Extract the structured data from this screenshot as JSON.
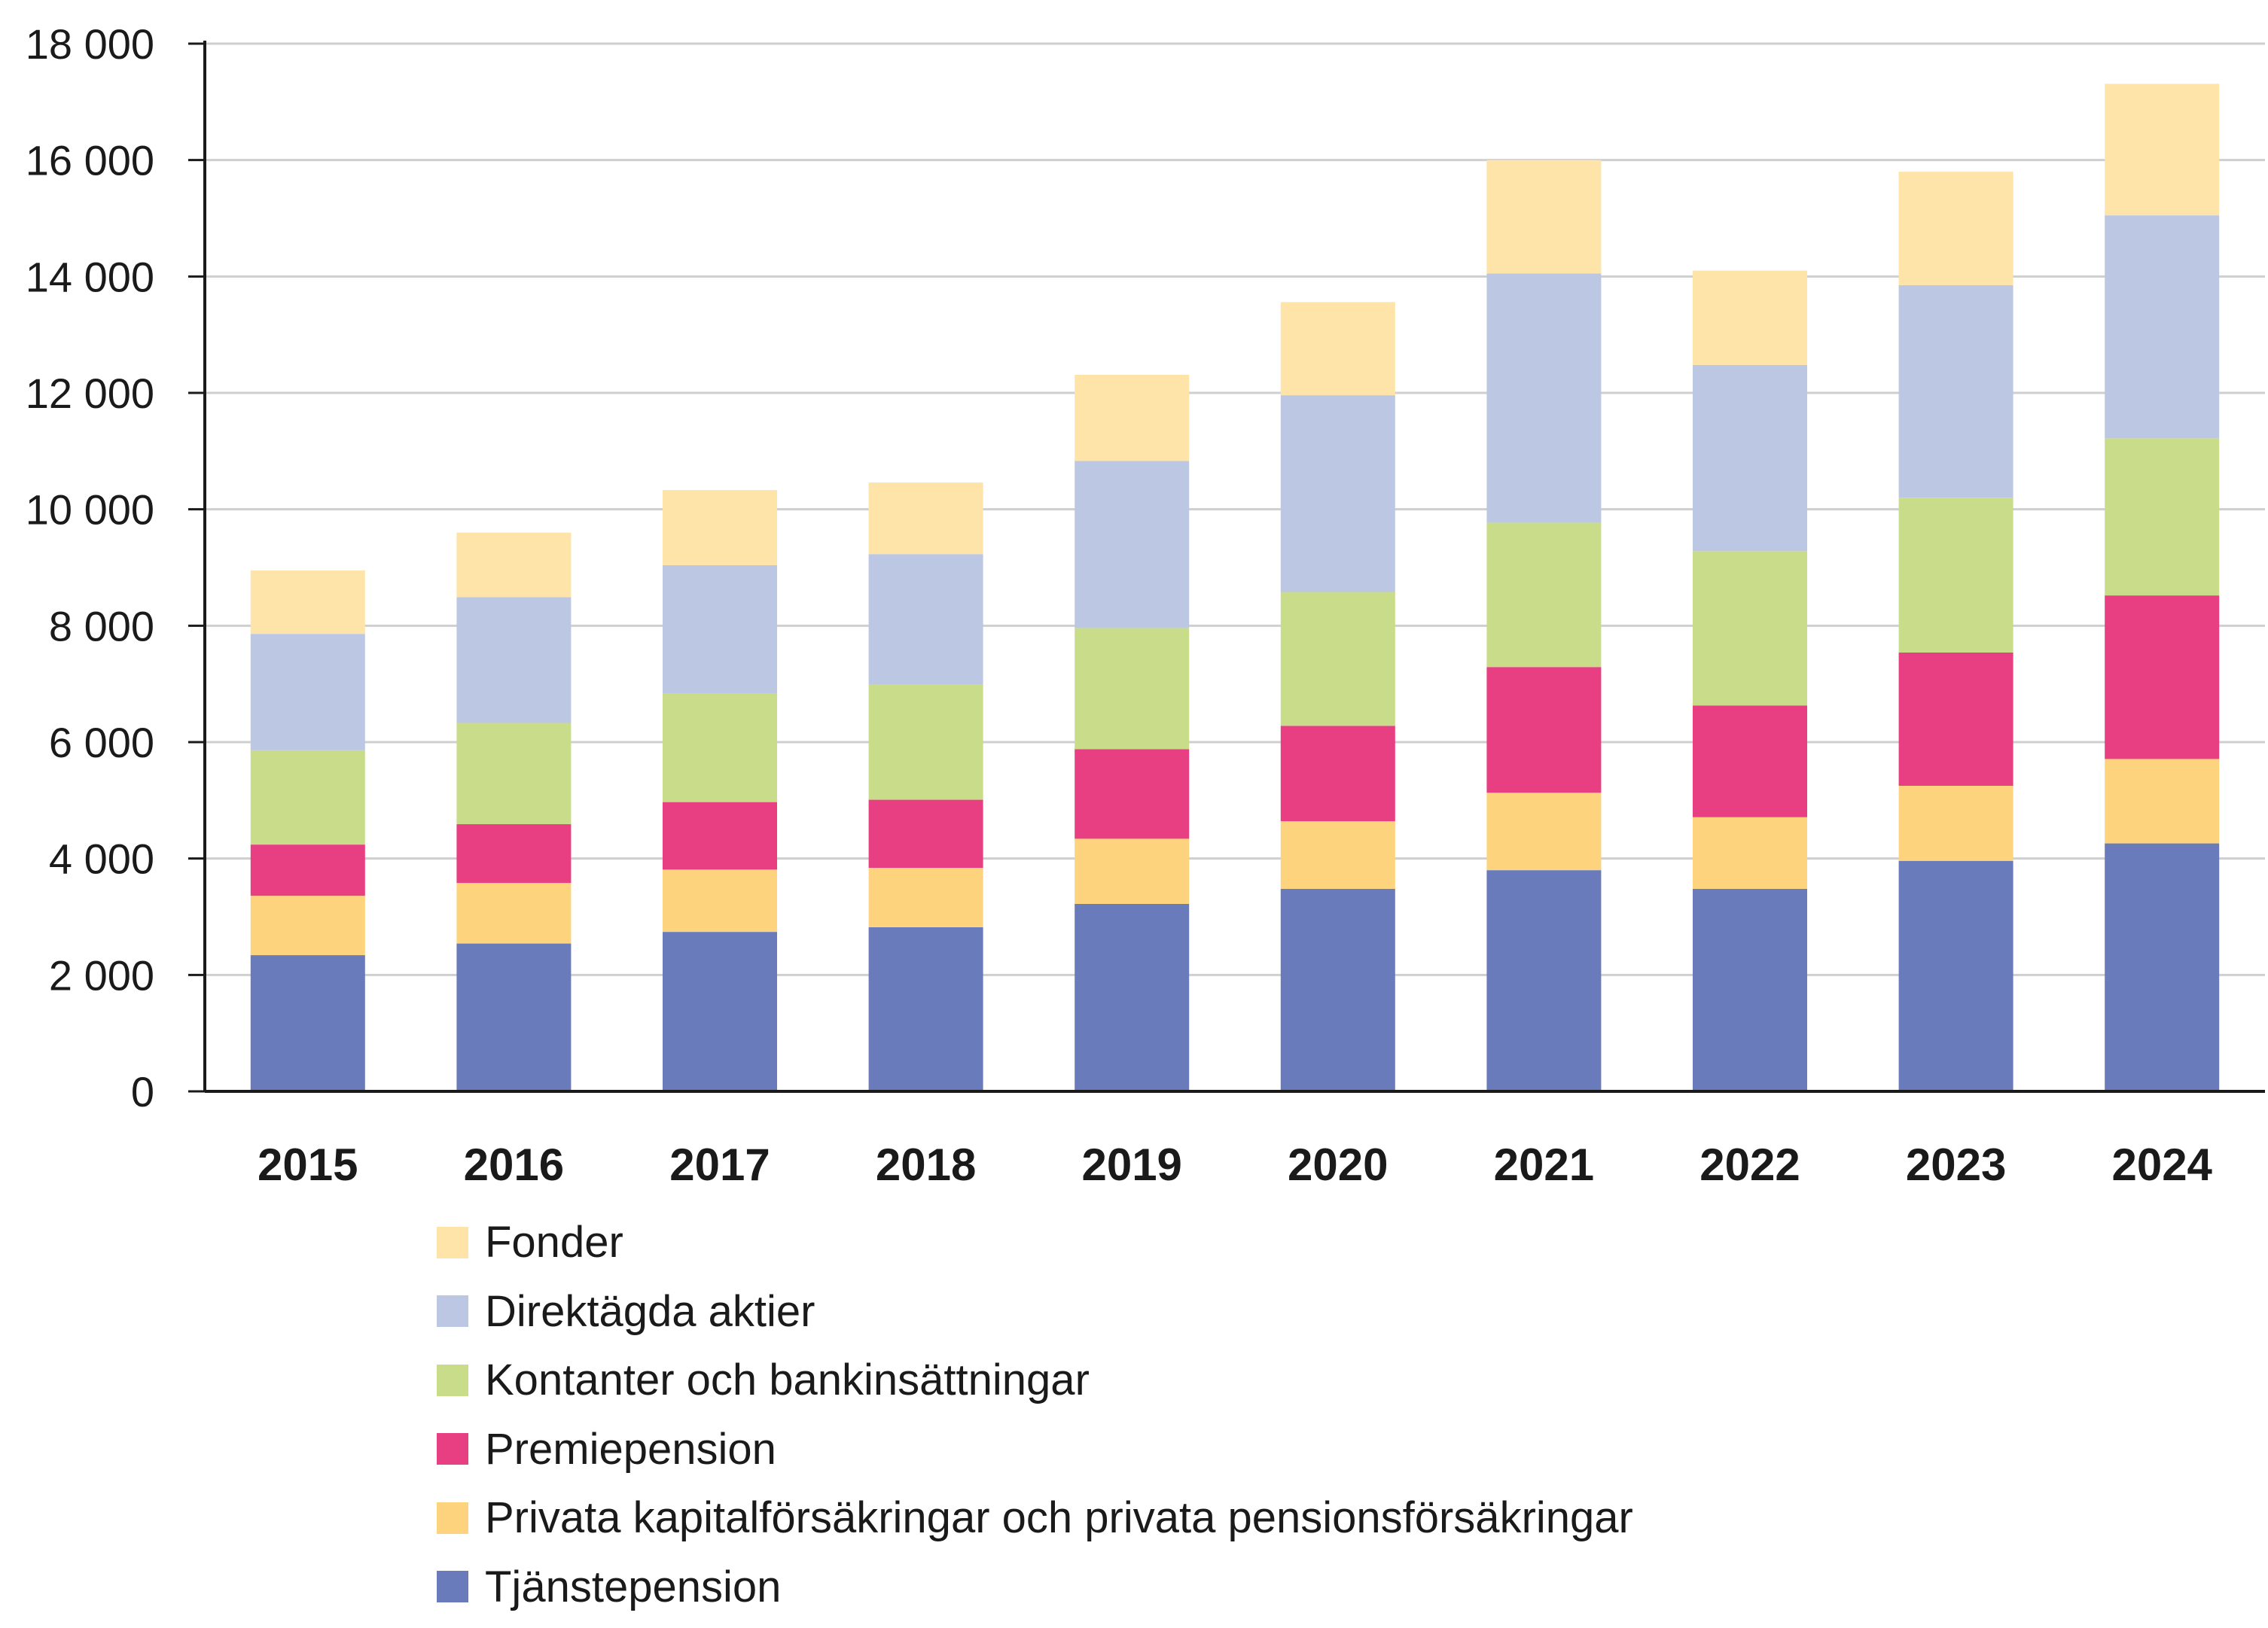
{
  "chart_data": {
    "type": "bar",
    "stacked": true,
    "categories": [
      "2015",
      "2016",
      "2017",
      "2018",
      "2019",
      "2020",
      "2021",
      "2022",
      "2023",
      "2024"
    ],
    "yticks": [
      "0",
      "2 000",
      "4 000",
      "6 000",
      "8 000",
      "10 000",
      "12 000",
      "14 000",
      "16 000",
      "18 000"
    ],
    "ylim": [
      0,
      18000
    ],
    "grid": true,
    "legend_position": "bottom",
    "series": [
      {
        "name": "Tjänstepension",
        "color": "#6a7bbc",
        "values": [
          2340,
          2540,
          2740,
          2820,
          3220,
          3480,
          3800,
          3480,
          3960,
          4260
        ]
      },
      {
        "name": "Privata kapitalförsäkringar och privata pensionsförsäkringar",
        "color": "#fdd47d",
        "values": [
          1020,
          1040,
          1070,
          1020,
          1120,
          1160,
          1330,
          1230,
          1290,
          1450
        ]
      },
      {
        "name": "Premiepension",
        "color": "#e83e82",
        "values": [
          880,
          1010,
          1160,
          1170,
          1540,
          1640,
          2160,
          1920,
          2290,
          2810
        ]
      },
      {
        "name": "Kontanter och bankinsättningar",
        "color": "#c8dc8a",
        "values": [
          1620,
          1740,
          1860,
          1980,
          2080,
          2300,
          2480,
          2650,
          2660,
          2700
        ]
      },
      {
        "name": "Direktägda aktier",
        "color": "#bcc7e3",
        "values": [
          2000,
          2160,
          2210,
          2240,
          2870,
          3380,
          4280,
          3200,
          3650,
          3830
        ]
      },
      {
        "name": "Fonder",
        "color": "#fee4a8",
        "values": [
          1090,
          1110,
          1290,
          1230,
          1480,
          1600,
          1950,
          1620,
          1950,
          2260
        ]
      }
    ]
  }
}
